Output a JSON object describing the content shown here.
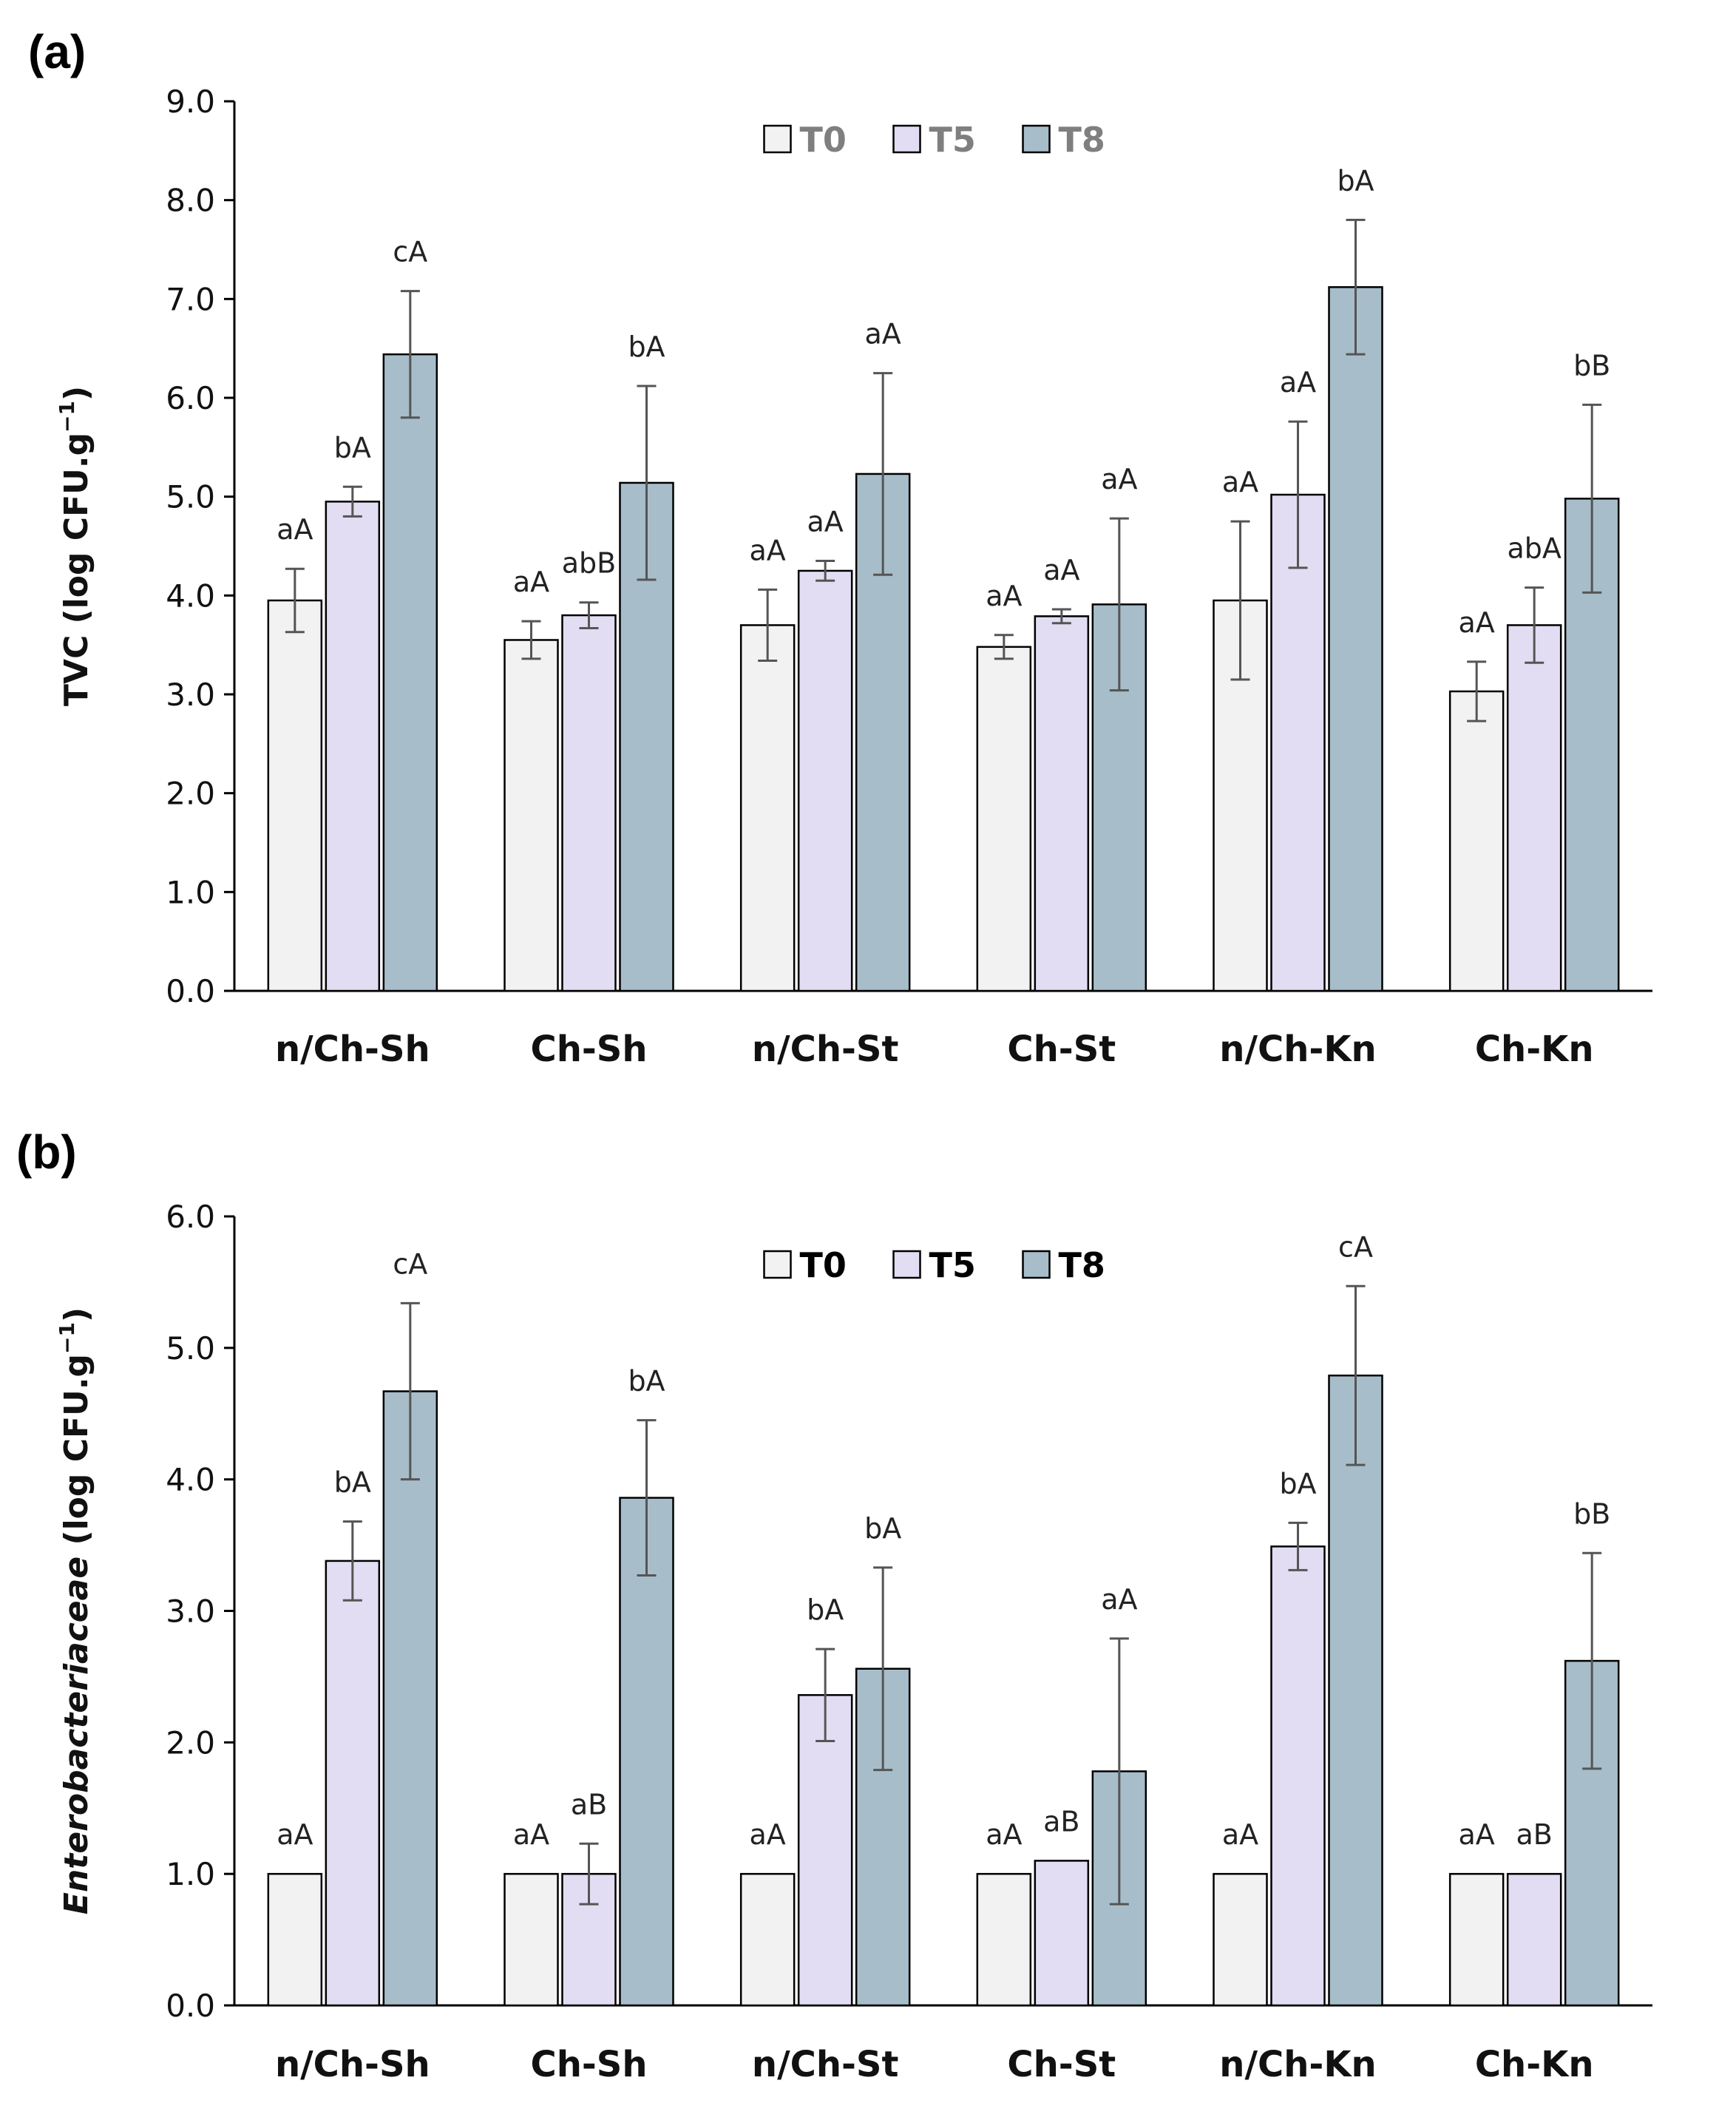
{
  "colors": {
    "T0": "#f2f2f2",
    "T5": "#e3ddf3",
    "T8": "#a7bdca",
    "error": "#555555",
    "axis": "#000000"
  },
  "chart_data": [
    {
      "panel": "(a)",
      "type": "bar",
      "ylabel_main": "TVC  (log CFU.g",
      "ylabel_sup": "−1",
      "ylabel_tail": ")",
      "ylabel_italic": false,
      "ylim": [
        0,
        9
      ],
      "yticks": [
        "0.0",
        "1.0",
        "2.0",
        "3.0",
        "4.0",
        "5.0",
        "6.0",
        "7.0",
        "8.0",
        "9.0"
      ],
      "categories": [
        "n/Ch-Sh",
        "Ch-Sh",
        "n/Ch-St",
        "Ch-St",
        "n/Ch-Kn",
        "Ch-Kn"
      ],
      "legend": {
        "position": "top-center",
        "entries": [
          "T0",
          "T5",
          "T8"
        ],
        "text_color": "#7f7f7f"
      },
      "series": [
        {
          "name": "T0",
          "values": [
            3.95,
            3.55,
            3.7,
            3.48,
            3.95,
            3.03
          ],
          "errors": [
            0.32,
            0.19,
            0.36,
            0.12,
            0.8,
            0.3
          ],
          "labels": [
            "aA",
            "aA",
            "aA",
            "aA",
            "aA",
            "aA"
          ]
        },
        {
          "name": "T5",
          "values": [
            4.95,
            3.8,
            4.25,
            3.79,
            5.02,
            3.7
          ],
          "errors": [
            0.15,
            0.13,
            0.1,
            0.07,
            0.74,
            0.38
          ],
          "labels": [
            "bA",
            "abB",
            "aA",
            "aA",
            "aA",
            "abA"
          ]
        },
        {
          "name": "T8",
          "values": [
            6.44,
            5.14,
            5.23,
            3.91,
            7.12,
            4.98
          ],
          "errors": [
            0.64,
            0.98,
            1.02,
            0.87,
            0.68,
            0.95
          ],
          "labels": [
            "cA",
            "bA",
            "aA",
            "aA",
            "bA",
            "bB"
          ]
        }
      ]
    },
    {
      "panel": "(b)",
      "type": "bar",
      "ylabel_main": "Enterobacteriaceae",
      "ylabel_sub": " (log CFU.g",
      "ylabel_sup": "−1",
      "ylabel_tail": ")",
      "ylabel_italic": true,
      "ylim": [
        0,
        6
      ],
      "yticks": [
        "0.0",
        "1.0",
        "2.0",
        "3.0",
        "4.0",
        "5.0",
        "6.0"
      ],
      "categories": [
        "n/Ch-Sh",
        "Ch-Sh",
        "n/Ch-St",
        "Ch-St",
        "n/Ch-Kn",
        "Ch-Kn"
      ],
      "legend": {
        "position": "top-center",
        "entries": [
          "T0",
          "T5",
          "T8"
        ],
        "text_color": "#000000"
      },
      "series": [
        {
          "name": "T0",
          "values": [
            1.0,
            1.0,
            1.0,
            1.0,
            1.0,
            1.0
          ],
          "errors": [
            0,
            0,
            0,
            0,
            0,
            0
          ],
          "labels": [
            "aA",
            "aA",
            "aA",
            "aA",
            "aA",
            "aA"
          ]
        },
        {
          "name": "T5",
          "values": [
            3.38,
            1.0,
            2.36,
            1.1,
            3.49,
            1.0
          ],
          "errors": [
            0.3,
            0.23,
            0.35,
            0.0,
            0.18,
            0.0
          ],
          "labels": [
            "bA",
            "aB",
            "bA",
            "aB",
            "bA",
            "aB"
          ]
        },
        {
          "name": "T8",
          "values": [
            4.67,
            3.86,
            2.56,
            1.78,
            4.79,
            2.62
          ],
          "errors": [
            0.67,
            0.59,
            0.77,
            1.01,
            0.68,
            0.82
          ],
          "labels": [
            "cA",
            "bA",
            "bA",
            "aA",
            "cA",
            "bB"
          ]
        }
      ]
    }
  ]
}
